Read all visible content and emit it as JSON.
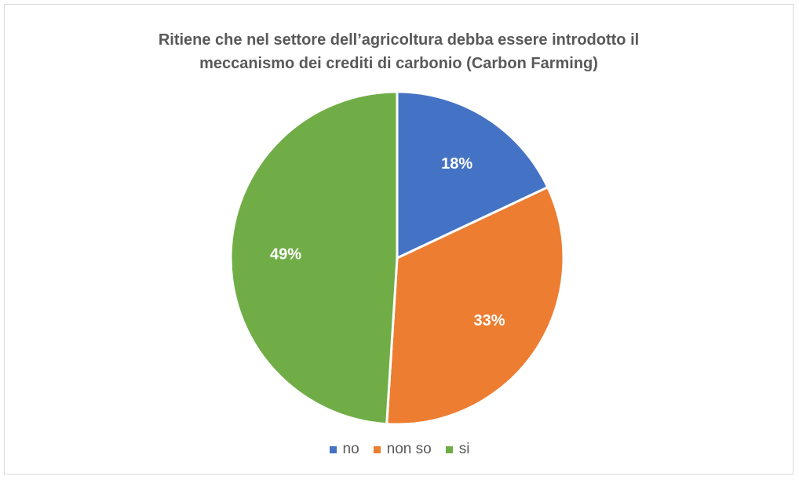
{
  "chart_data": {
    "type": "pie",
    "title_lines": [
      "Ritiene che nel settore dell’agricoltura debba essere introdotto il",
      "meccanismo dei crediti di carbonio (Carbon Farming)"
    ],
    "categories": [
      "no",
      "non so",
      "si"
    ],
    "values": [
      18,
      33,
      49
    ],
    "data_labels": [
      "18%",
      "33%",
      "49%"
    ],
    "colors": [
      "#4472C4",
      "#ED7D31",
      "#70AD47"
    ],
    "legend_position": "bottom"
  }
}
